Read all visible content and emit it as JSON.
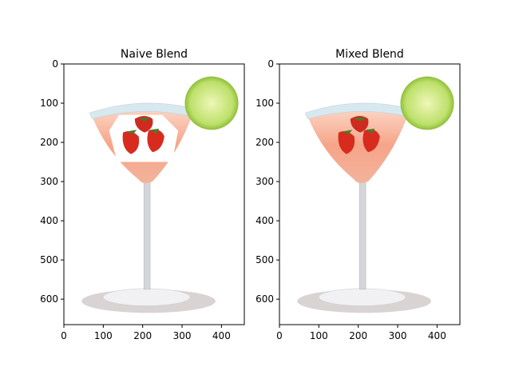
{
  "chart_data": [
    {
      "type": "image",
      "title": "Naive Blend",
      "xlim": [
        0,
        458
      ],
      "ylim": [
        665,
        0
      ],
      "xticks": [
        0,
        100,
        200,
        300,
        400
      ],
      "yticks": [
        0,
        100,
        200,
        300,
        400,
        500,
        600
      ]
    },
    {
      "type": "image",
      "title": "Mixed Blend",
      "xlim": [
        0,
        458
      ],
      "ylim": [
        665,
        0
      ],
      "xticks": [
        0,
        100,
        200,
        300,
        400
      ],
      "yticks": [
        0,
        100,
        200,
        300,
        400,
        500,
        600
      ]
    }
  ]
}
